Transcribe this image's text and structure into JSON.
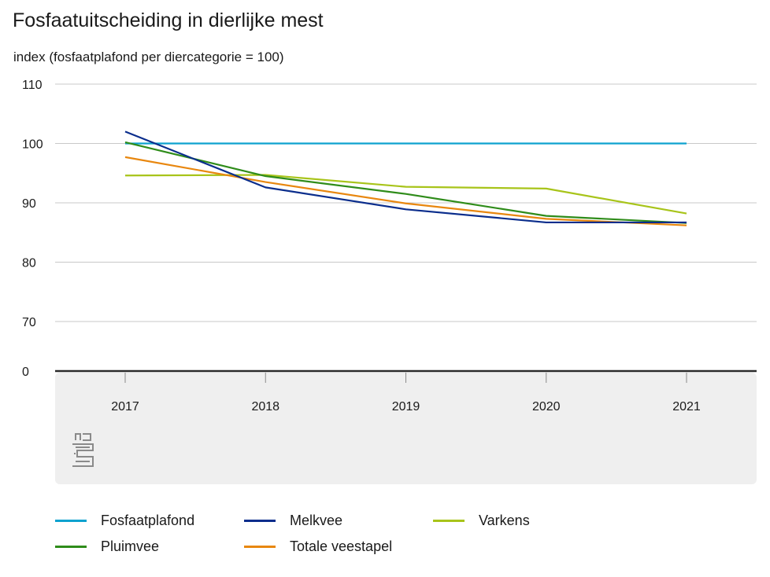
{
  "chart_data": {
    "type": "line",
    "title": "Fosfaatuitscheiding in dierlijke mest",
    "ylabel": "index (fosfaatplafond per diercategorie = 100)",
    "categories": [
      "2017",
      "2018",
      "2019",
      "2020",
      "2021"
    ],
    "yticks": [
      "110",
      "100",
      "90",
      "80",
      "70",
      "0"
    ],
    "axis_break": "between 70 and 0",
    "ylim": [
      65,
      110
    ],
    "grid": true,
    "legend_position": "bottom",
    "series": [
      {
        "name": "Fosfaatplafond",
        "color": "#0da2cf",
        "values": [
          100,
          100,
          100,
          100,
          100
        ]
      },
      {
        "name": "Melkvee",
        "color": "#0a2d8c",
        "values": [
          102.0,
          92.6,
          88.9,
          86.7,
          86.7
        ]
      },
      {
        "name": "Varkens",
        "color": "#a8c41a",
        "values": [
          94.6,
          94.7,
          92.7,
          92.4,
          88.2
        ]
      },
      {
        "name": "Pluimvee",
        "color": "#2f8c1a",
        "values": [
          100.2,
          94.5,
          91.5,
          87.8,
          86.6
        ]
      },
      {
        "name": "Totale veestapel",
        "color": "#e8870f",
        "values": [
          97.7,
          93.5,
          89.9,
          87.3,
          86.2
        ]
      }
    ]
  }
}
